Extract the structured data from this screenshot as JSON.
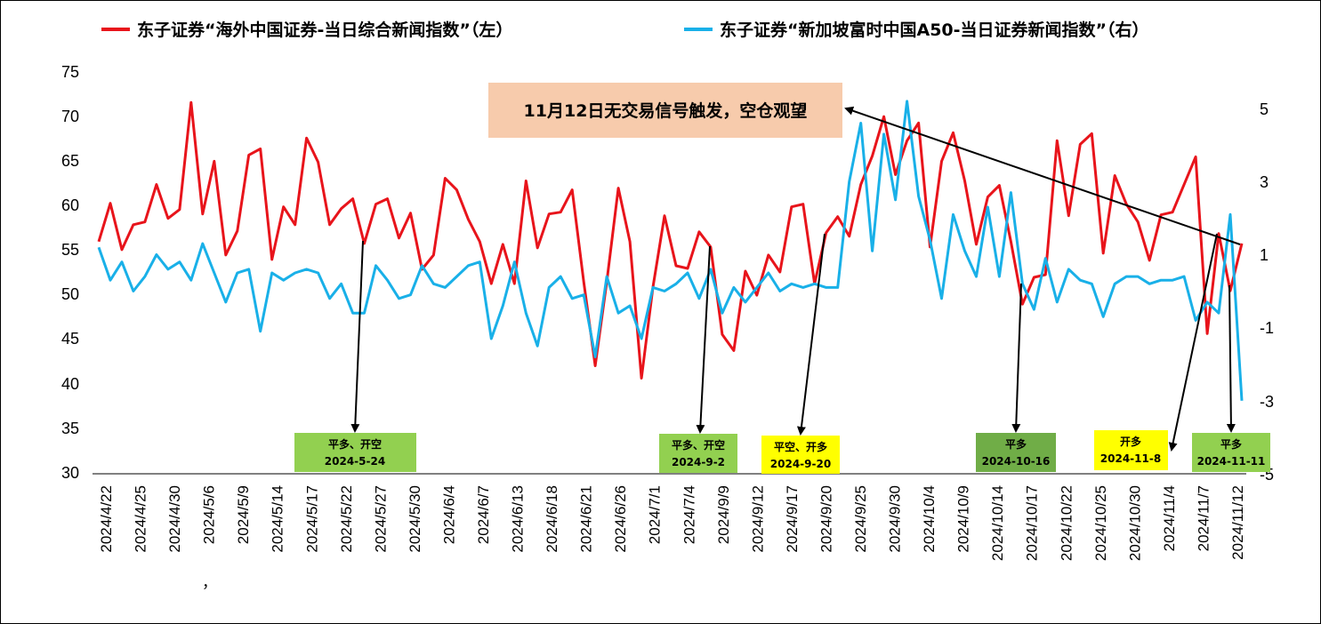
{
  "chart_data": {
    "type": "line",
    "title": "",
    "legend_position": "top",
    "left_axis": {
      "ylim": [
        30,
        75
      ],
      "ticks": [
        "30",
        "35",
        "40",
        "45",
        "50",
        "55",
        "60",
        "65",
        "70",
        "75"
      ]
    },
    "right_axis": {
      "ylim": [
        -5,
        6
      ],
      "ticks": [
        "-5",
        "-3",
        "-1",
        "1",
        "3",
        "5"
      ]
    },
    "x_ticks": [
      "2024/4/22",
      "2024/4/25",
      "2024/4/30",
      "2024/5/6",
      "2024/5/9",
      "2024/5/14",
      "2024/5/17",
      "2024/5/22",
      "2024/5/27",
      "2024/5/30",
      "2024/6/4",
      "2024/6/7",
      "2024/6/13",
      "2024/6/18",
      "2024/6/21",
      "2024/6/26",
      "2024/7/1",
      "2024/7/4",
      "2024/9/9",
      "2024/9/12",
      "2024/9/17",
      "2024/9/20",
      "2024/9/25",
      "2024/9/30",
      "2024/10/4",
      "2024/10/9",
      "2024/10/14",
      "2024/10/17",
      "2024/10/22",
      "2024/10/25",
      "2024/10/30",
      "2024/11/4",
      "2024/11/7",
      "2024/11/12"
    ],
    "series": [
      {
        "name": "东子证券“海外中国证券-当日综合新闻指数”（左）",
        "color": "#e8141b",
        "axis": "left",
        "values": [
          56.0,
          60.3,
          55.1,
          57.9,
          58.2,
          62.4,
          58.6,
          59.6,
          71.6,
          59.1,
          65.0,
          54.5,
          57.2,
          65.7,
          66.4,
          54.0,
          59.9,
          57.9,
          67.6,
          64.9,
          57.9,
          59.7,
          60.8,
          55.8,
          60.2,
          60.8,
          56.4,
          59.2,
          52.9,
          54.5,
          63.1,
          61.8,
          58.5,
          56.0,
          51.3,
          55.7,
          51.3,
          62.8,
          55.3,
          59.1,
          59.3,
          61.8,
          51.5,
          42.1,
          51.5,
          62.0,
          56.0,
          40.7,
          50.9,
          58.9,
          53.3,
          53.0,
          57.1,
          55.4,
          45.6,
          43.8,
          52.7,
          50.0,
          54.5,
          52.6,
          59.9,
          60.2,
          51.3,
          57.0,
          58.8,
          56.6,
          62.4,
          65.6,
          70.0,
          63.5,
          67.3,
          69.3,
          55.4,
          65.0,
          68.2,
          62.8,
          55.7,
          61.0,
          62.3,
          56.0,
          49.0,
          52.0,
          52.3,
          67.3,
          58.9,
          66.9,
          68.1,
          54.7,
          63.4,
          60.2,
          58.2,
          53.9,
          59.0,
          59.3,
          62.4,
          65.5,
          45.7,
          56.9,
          50.5,
          55.8
        ]
      },
      {
        "name": "东子证券“新加坡富时中国A50-当日证券新闻指数”（右）",
        "color": "#19b0e8",
        "axis": "right",
        "values": [
          1.2,
          0.3,
          0.8,
          0.0,
          0.4,
          1.0,
          0.6,
          0.8,
          0.3,
          1.3,
          0.5,
          -0.3,
          0.5,
          0.6,
          -1.1,
          0.5,
          0.3,
          0.5,
          0.6,
          0.5,
          -0.2,
          0.2,
          -0.6,
          -0.6,
          0.7,
          0.3,
          -0.2,
          -0.1,
          0.7,
          0.2,
          0.1,
          0.4,
          0.7,
          0.8,
          -1.3,
          -0.4,
          0.8,
          -0.6,
          -1.5,
          0.1,
          0.4,
          -0.2,
          -0.1,
          -1.8,
          0.4,
          -0.6,
          -0.4,
          -1.3,
          0.1,
          0.0,
          0.2,
          0.5,
          -0.2,
          0.6,
          -0.6,
          0.1,
          -0.3,
          0.1,
          0.5,
          0.0,
          0.2,
          0.1,
          0.2,
          0.1,
          0.1,
          3.0,
          4.6,
          1.1,
          4.3,
          2.5,
          5.2,
          2.6,
          1.4,
          -0.2,
          2.1,
          1.1,
          0.4,
          2.3,
          0.4,
          2.7,
          0.2,
          -0.5,
          0.9,
          -0.3,
          0.6,
          0.3,
          0.2,
          -0.7,
          0.2,
          0.4,
          0.4,
          0.2,
          0.3,
          0.3,
          0.4,
          -0.8,
          -0.3,
          -0.6,
          2.1,
          -3.0
        ]
      }
    ],
    "annotations": {
      "note": "11月12日无交易信号触发，空仓观望",
      "note_color": "#f7cbac",
      "signals": [
        {
          "action": "平多、开空",
          "date": "2024-5-24",
          "color": "#92d050"
        },
        {
          "action": "平多、开空",
          "date": "2024-9-2",
          "color": "#92d050"
        },
        {
          "action": "平空、开多",
          "date": "2024-9-20",
          "color": "#ffff00"
        },
        {
          "action": "平多",
          "date": "2024-10-16",
          "color": "#70ad47"
        },
        {
          "action": "开多",
          "date": "2024-11-8",
          "color": "#ffff00"
        },
        {
          "action": "平多",
          "date": "2024-11-11",
          "color": "#92d050"
        }
      ],
      "stray_mark": "，"
    }
  }
}
